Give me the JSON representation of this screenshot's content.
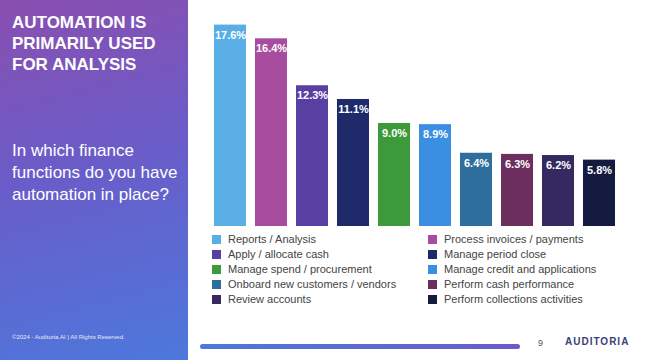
{
  "chart_data": {
    "type": "bar",
    "title": "AUTOMATION IS PRIMARILY USED FOR ANALYSIS",
    "subtitle": "In which finance functions do you have automation in place?",
    "categories": [
      "Reports / Analysis",
      "Process invoices / payments",
      "Apply / allocate cash",
      "Manage period close",
      "Manage spend / procurement",
      "Manage credit and applications",
      "Onboard new customers / vendors",
      "Perform cash performance",
      "Review accounts",
      "Perform collections activities"
    ],
    "values": [
      17.6,
      16.4,
      12.3,
      11.1,
      9.0,
      8.9,
      6.4,
      6.3,
      6.2,
      5.8
    ],
    "value_labels": [
      "17.6%",
      "16.4%",
      "12.3%",
      "11.1%",
      "9.0%",
      "8.9%",
      "6.4%",
      "6.3%",
      "6.2%",
      "5.8%"
    ],
    "colors": [
      "#5aaee6",
      "#a84c9f",
      "#5a3fa2",
      "#1f2a6b",
      "#3c9a3a",
      "#3b8fe2",
      "#2e6e9c",
      "#6b2e5f",
      "#35295f",
      "#141a40"
    ],
    "ylim": [
      0,
      18
    ],
    "data_labels": true,
    "tick_labels": false,
    "legend": "bottom"
  },
  "page": {
    "copyright": "©2024 - Auditoria.AI | All Rights Reserved.",
    "page_number": 9,
    "logo": "AUDITORIA"
  }
}
